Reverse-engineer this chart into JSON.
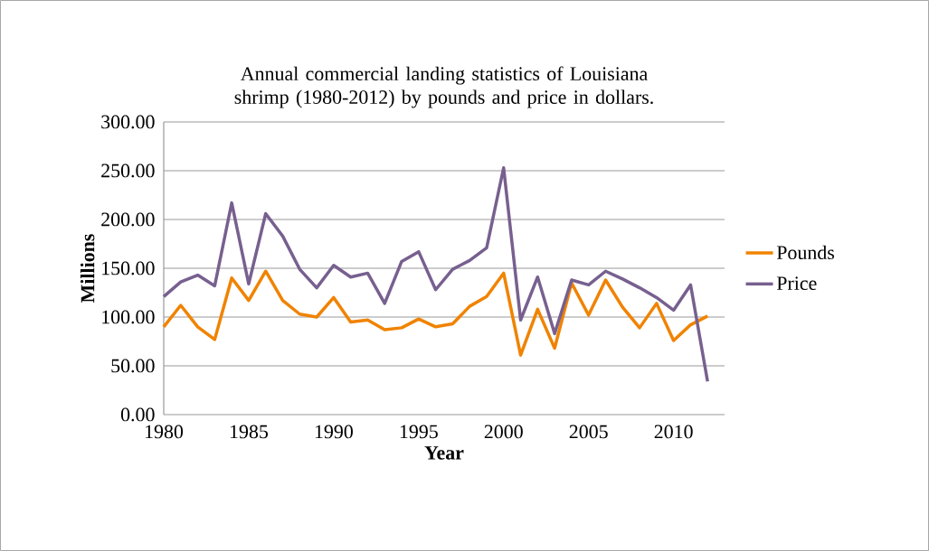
{
  "chart_data": {
    "type": "line",
    "title": "Annual commercial landing statistics of Louisiana shrimp (1980-2012) by pounds and price in dollars.",
    "xlabel": "Year",
    "ylabel": "Millions",
    "x": [
      1980,
      1981,
      1982,
      1983,
      1984,
      1985,
      1986,
      1987,
      1988,
      1989,
      1990,
      1991,
      1992,
      1993,
      1994,
      1995,
      1996,
      1997,
      1998,
      1999,
      2000,
      2001,
      2002,
      2003,
      2004,
      2005,
      2006,
      2007,
      2008,
      2009,
      2010,
      2011,
      2012
    ],
    "series": [
      {
        "name": "Pounds",
        "color": "#f08300",
        "values": [
          90,
          112,
          90,
          77,
          140,
          117,
          147,
          117,
          103,
          100,
          120,
          95,
          97,
          87,
          89,
          98,
          90,
          93,
          111,
          121,
          145,
          61,
          108,
          68,
          135,
          102,
          138,
          110,
          89,
          114,
          76,
          92,
          101
        ]
      },
      {
        "name": "Price",
        "color": "#77608f",
        "values": [
          121,
          136,
          143,
          132,
          217,
          134,
          206,
          183,
          149,
          130,
          153,
          141,
          145,
          114,
          157,
          167,
          128,
          149,
          158,
          171,
          253,
          97,
          141,
          83,
          138,
          133,
          147,
          139,
          130,
          120,
          107,
          133,
          34
        ]
      }
    ],
    "xlim": [
      1980,
      2013
    ],
    "xticks": [
      1980,
      1985,
      1990,
      1995,
      2000,
      2005,
      2010
    ],
    "ylim": [
      0,
      300
    ],
    "yticks": [
      {
        "value": 0,
        "label": "0.00"
      },
      {
        "value": 50,
        "label": "50.00"
      },
      {
        "value": 100,
        "label": "100.00"
      },
      {
        "value": 150,
        "label": "150.00"
      },
      {
        "value": 200,
        "label": "200.00"
      },
      {
        "value": 250,
        "label": "250.00"
      },
      {
        "value": 300,
        "label": "300.00"
      }
    ],
    "grid": "y",
    "legend": "right",
    "marker": "none",
    "line_style": "solid"
  }
}
